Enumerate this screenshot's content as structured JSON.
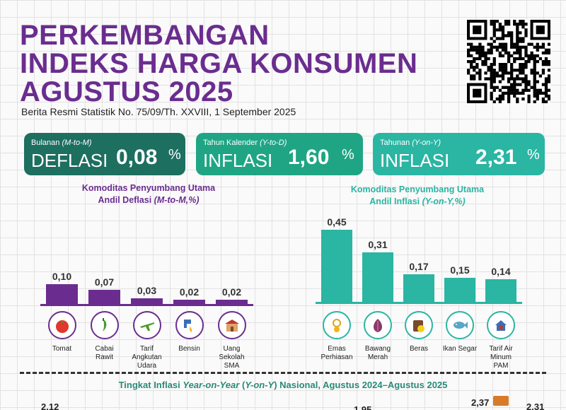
{
  "title_lines": [
    "PERKEMBANGAN",
    "INDEKS HARGA KONSUMEN",
    "AGUSTUS 2025"
  ],
  "subtitle": "Berita Resmi Statistik No. 75/09/Th. XXVIII, 1 September 2025",
  "colors": {
    "purple": "#6a2d8f",
    "dark_teal": "#1d6f60",
    "green": "#20a584",
    "teal": "#2bb5a3"
  },
  "cards": [
    {
      "label_plain": "Bulanan ",
      "label_italic": "(M-to-M)",
      "kind": "DEFLASI",
      "value": "0,08",
      "unit": "%",
      "color": "#1d6f60"
    },
    {
      "label_plain": "Tahun Kalender ",
      "label_italic": "(Y-to-D)",
      "kind": "INFLASI",
      "value": "1,60",
      "unit": "%",
      "color": "#20a584"
    },
    {
      "label_plain": "Tahunan ",
      "label_italic": "(Y-on-Y)",
      "kind": "INFLASI",
      "value": "2,31",
      "unit": "%",
      "color": "#2bb5a3"
    }
  ],
  "left_section": {
    "line1": "Komoditas Penyumbang Utama",
    "line2_plain": "Andil Deflasi ",
    "line2_italic": "(M-to-M,%)"
  },
  "right_section": {
    "line1": "Komoditas Penyumbang Utama",
    "line2_plain": "Andil Inflasi ",
    "line2_italic": "(Y-on-Y,%)"
  },
  "chart_data": [
    {
      "type": "bar",
      "title": "Komoditas Penyumbang Utama Andil Deflasi (M-to-M,%)",
      "categories": [
        "Tomat",
        "Cabai Rawit",
        "Tarif Angkutan Udara",
        "Bensin",
        "Uang Sekolah SMA"
      ],
      "category_lines": [
        [
          "Tomat"
        ],
        [
          "Cabai",
          "Rawit"
        ],
        [
          "Tarif",
          "Angkutan",
          "Udara"
        ],
        [
          "Bensin"
        ],
        [
          "Uang",
          "Sekolah",
          "SMA"
        ]
      ],
      "values": [
        0.1,
        0.07,
        0.03,
        0.02,
        0.02
      ],
      "value_labels": [
        "0,10",
        "0,07",
        "0,03",
        "0,02",
        "0,02"
      ],
      "icons": [
        "tomato-icon",
        "chili-icon",
        "airplane-icon",
        "fuel-nozzle-icon",
        "school-icon"
      ],
      "color": "#6a2d8f"
    },
    {
      "type": "bar",
      "title": "Komoditas Penyumbang Utama Andil Inflasi (Y-on-Y,%)",
      "categories": [
        "Emas Perhiasan",
        "Bawang Merah",
        "Beras",
        "Ikan Segar",
        "Tarif Air Minum PAM"
      ],
      "category_lines": [
        [
          "Emas",
          "Perhiasan"
        ],
        [
          "Bawang",
          "Merah"
        ],
        [
          "Beras"
        ],
        [
          "Ikan Segar"
        ],
        [
          "Tarif Air",
          "Minum",
          "PAM"
        ]
      ],
      "values": [
        0.45,
        0.31,
        0.17,
        0.15,
        0.14
      ],
      "value_labels": [
        "0,45",
        "0,31",
        "0,17",
        "0,15",
        "0,14"
      ],
      "icons": [
        "gold-jewelry-icon",
        "shallot-icon",
        "rice-sack-icon",
        "fish-icon",
        "water-tap-icon"
      ],
      "color": "#2bb5a3"
    }
  ],
  "footer": {
    "title_plain1": "Tingkat Inflasi ",
    "title_italic1": "Year-on-Year",
    "title_plain2": " (",
    "title_italic2": "Y-on-Y",
    "title_plain3": ") Nasional, Agustus 2024–Agustus 2025"
  },
  "bottom_values": [
    "2,12",
    "1,95",
    "2,37",
    "2,31"
  ]
}
